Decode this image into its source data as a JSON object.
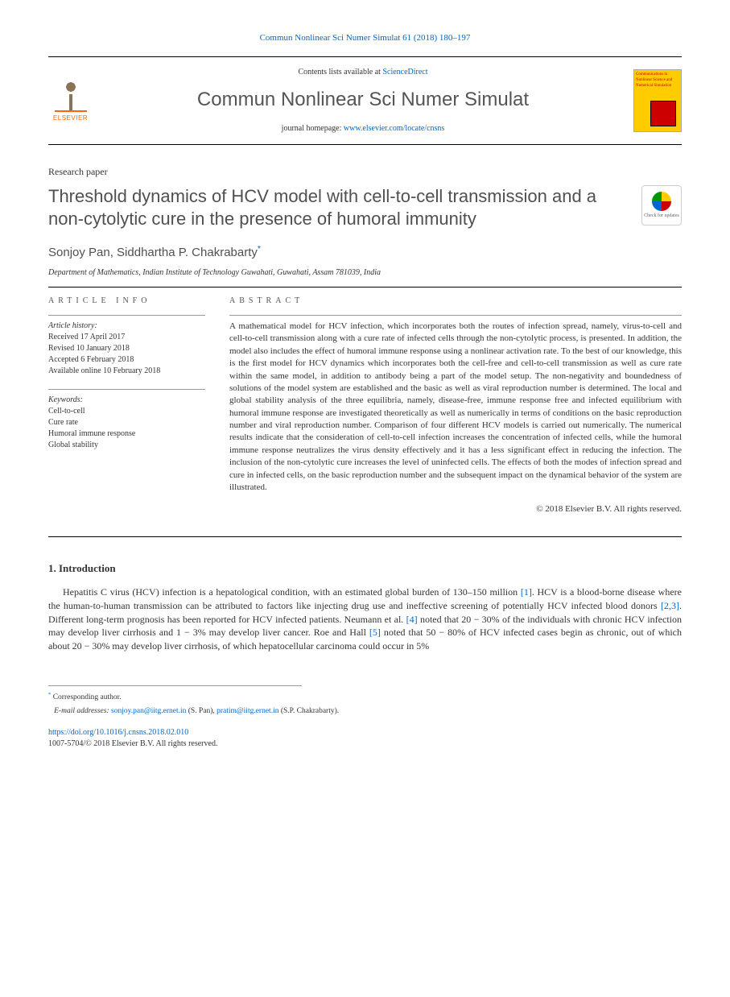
{
  "header_citation": "Commun Nonlinear Sci Numer Simulat 61 (2018) 180–197",
  "contents_lists_prefix": "Contents lists available at ",
  "contents_lists_link": "ScienceDirect",
  "journal_name": "Commun Nonlinear Sci Numer Simulat",
  "homepage_prefix": "journal homepage: ",
  "homepage_url": "www.elsevier.com/locate/cnsns",
  "publisher_name": "ELSEVIER",
  "cover_text": "Communications in Nonlinear Science and Numerical Simulation",
  "article_type": "Research paper",
  "title": "Threshold dynamics of HCV model with cell-to-cell transmission and a non-cytolytic cure in the presence of humoral immunity",
  "crossmark_label": "Check for updates",
  "authors_html": "Sonjoy Pan, Siddhartha P. Chakrabarty",
  "corresponding_mark": "*",
  "affiliation": "Department of Mathematics, Indian Institute of Technology Guwahati, Guwahati, Assam 781039, India",
  "article_info_head": "article info",
  "abstract_head": "abstract",
  "history": {
    "label": "Article history:",
    "received": "Received 17 April 2017",
    "revised": "Revised 10 January 2018",
    "accepted": "Accepted 6 February 2018",
    "online": "Available online 10 February 2018"
  },
  "keywords": {
    "label": "Keywords:",
    "items": [
      "Cell-to-cell",
      "Cure rate",
      "Humoral immune response",
      "Global stability"
    ]
  },
  "abstract": "A mathematical model for HCV infection, which incorporates both the routes of infection spread, namely, virus-to-cell and cell-to-cell transmission along with a cure rate of infected cells through the non-cytolytic process, is presented. In addition, the model also includes the effect of humoral immune response using a nonlinear activation rate. To the best of our knowledge, this is the first model for HCV dynamics which incorporates both the cell-free and cell-to-cell transmission as well as cure rate within the same model, in addition to antibody being a part of the model setup. The non-negativity and boundedness of solutions of the model system are established and the basic as well as viral reproduction number is determined. The local and global stability analysis of the three equilibria, namely, disease-free, immune response free and infected equilibrium with humoral immune response are investigated theoretically as well as numerically in terms of conditions on the basic reproduction number and viral reproduction number. Comparison of four different HCV models is carried out numerically. The numerical results indicate that the consideration of cell-to-cell infection increases the concentration of infected cells, while the humoral immune response neutralizes the virus density effectively and it has a less significant effect in reducing the infection. The inclusion of the non-cytolytic cure increases the level of uninfected cells. The effects of both the modes of infection spread and cure in infected cells, on the basic reproduction number and the subsequent impact on the dynamical behavior of the system are illustrated.",
  "copyright": "© 2018 Elsevier B.V. All rights reserved.",
  "intro_heading": "1. Introduction",
  "intro_body": "Hepatitis C virus (HCV) infection is a hepatological condition, with an estimated global burden of 130–150 million [1]. HCV is a blood-borne disease where the human-to-human transmission can be attributed to factors like injecting drug use and ineffective screening of potentially HCV infected blood donors [2,3]. Different long-term prognosis has been reported for HCV infected patients. Neumann et al. [4] noted that 20 − 30% of the individuals with chronic HCV infection may develop liver cirrhosis and 1 − 3% may develop liver cancer. Roe and Hall [5] noted that 50 − 80% of HCV infected cases begin as chronic, out of which about 20 − 30% may develop liver cirrhosis, of which hepatocellular carcinoma could occur in 5%",
  "refs": {
    "r1": "[1]",
    "r23": "[2,3]",
    "r4": "[4]",
    "r5": "[5]"
  },
  "footnote": {
    "corr_label": "Corresponding author.",
    "email_label": "E-mail addresses:",
    "email1": "sonjoy.pan@iitg.ernet.in",
    "name1": "(S. Pan),",
    "email2": "pratim@iitg.ernet.in",
    "name2": "(S.P. Chakrabarty)."
  },
  "doi": "https://doi.org/10.1016/j.cnsns.2018.02.010",
  "issn_line": "1007-5704/© 2018 Elsevier B.V. All rights reserved.",
  "colors": {
    "link": "#0066cc",
    "accent_orange": "#ff6600",
    "cover_bg": "#ffcc00",
    "cover_accent": "#cc0000"
  }
}
